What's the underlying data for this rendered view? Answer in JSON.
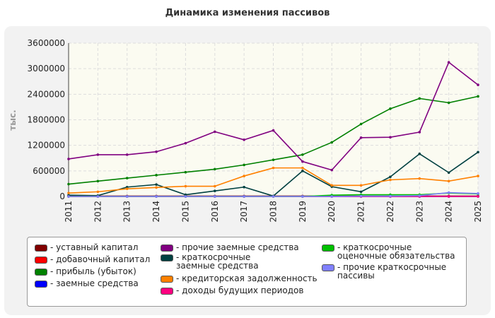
{
  "chart_data": {
    "type": "line",
    "title": "Динамика изменения пассивов",
    "ylabel": "тыс.",
    "xlabel": "",
    "x": [
      "2011",
      "2012",
      "2013",
      "2014",
      "2015",
      "2016",
      "2017",
      "2018",
      "2019",
      "2020",
      "2021",
      "2022",
      "2023",
      "2024",
      "2025"
    ],
    "ylim": [
      0,
      3600000
    ],
    "yticks": [
      "0",
      "600000",
      "1200000",
      "1800000",
      "2400000",
      "3000000",
      "3600000"
    ],
    "grid": true,
    "legend_position": "bottom",
    "series": [
      {
        "name": "- уставный капитал",
        "color": "#800000",
        "values": [
          10000,
          10000,
          10000,
          10000,
          10000,
          10000,
          10000,
          10000,
          10000,
          10000,
          10000,
          10000,
          10000,
          10000,
          10000
        ]
      },
      {
        "name": "- добавочный капитал",
        "color": "#ff0000",
        "values": [
          0,
          0,
          0,
          0,
          0,
          0,
          0,
          0,
          0,
          0,
          0,
          0,
          0,
          0,
          0
        ]
      },
      {
        "name": "- прибыль (убыток)",
        "color": "#008000",
        "values": [
          290000,
          360000,
          430000,
          500000,
          570000,
          640000,
          740000,
          860000,
          980000,
          1270000,
          1700000,
          2060000,
          2300000,
          2200000,
          2350000
        ]
      },
      {
        "name": "- заемные средства",
        "color": "#0000ff",
        "values": [
          0,
          0,
          0,
          0,
          0,
          0,
          0,
          0,
          0,
          0,
          0,
          0,
          0,
          0,
          0
        ]
      },
      {
        "name": "- прочие заемные средства",
        "color": "#800080",
        "values": [
          880000,
          980000,
          980000,
          1050000,
          1250000,
          1520000,
          1330000,
          1550000,
          820000,
          620000,
          1380000,
          1390000,
          1510000,
          3150000,
          2620000
        ]
      },
      {
        "name": "- краткосрочные заемные средства",
        "color": "#004040",
        "values": [
          30000,
          20000,
          220000,
          280000,
          40000,
          130000,
          220000,
          10000,
          600000,
          230000,
          110000,
          460000,
          1000000,
          560000,
          1040000
        ]
      },
      {
        "name": "- кредиторская задолженность",
        "color": "#ff8000",
        "values": [
          80000,
          110000,
          180000,
          210000,
          240000,
          240000,
          480000,
          670000,
          670000,
          260000,
          260000,
          390000,
          420000,
          360000,
          480000
        ]
      },
      {
        "name": "- доходы будущих периодов",
        "color": "#ff0080",
        "values": [
          0,
          0,
          0,
          0,
          0,
          0,
          0,
          0,
          0,
          0,
          0,
          0,
          0,
          0,
          0
        ]
      },
      {
        "name": "- краткосрочные оценочные обязательства",
        "color": "#00c000",
        "values": [
          0,
          0,
          0,
          0,
          0,
          0,
          0,
          0,
          0,
          30000,
          40000,
          40000,
          40000,
          80000,
          60000
        ]
      },
      {
        "name": "- прочие краткосрочные пассивы",
        "color": "#8080ff",
        "values": [
          0,
          0,
          0,
          0,
          0,
          0,
          0,
          0,
          0,
          0,
          10000,
          10000,
          20000,
          90000,
          70000
        ]
      }
    ]
  }
}
